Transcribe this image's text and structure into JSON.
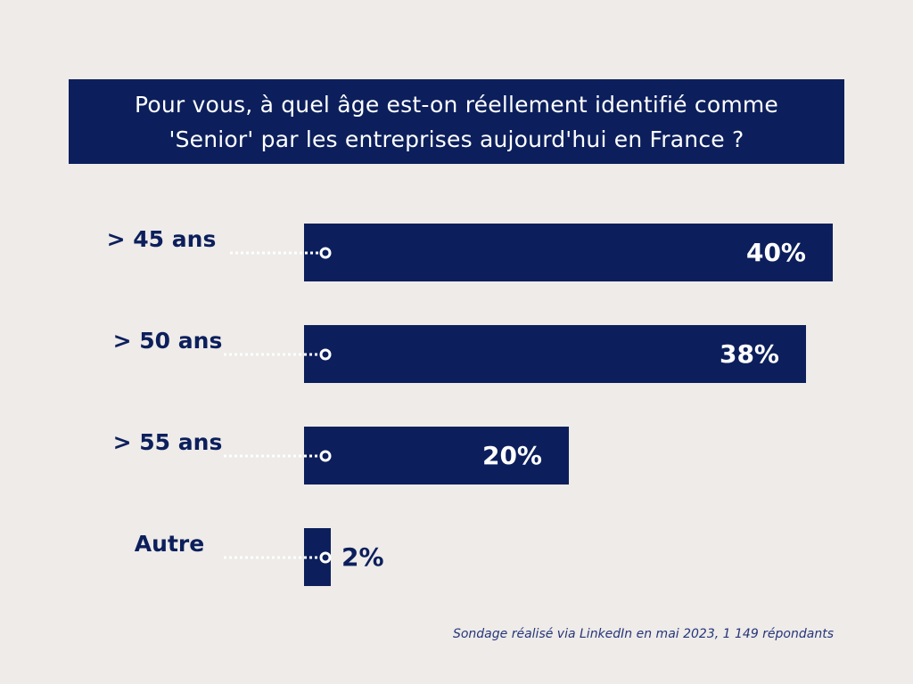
{
  "header": {
    "title_line1": "Pour vous, à quel âge est-on réellement identifié comme",
    "title_line2": "'Senior' par les entreprises aujourd'hui en France ?"
  },
  "colors": {
    "background": "#eeebe8",
    "bar": "#0c1f5c",
    "dot_connector": "#ffffff"
  },
  "chart_data": {
    "type": "bar",
    "orientation": "horizontal",
    "title": "Pour vous, à quel âge est-on réellement identifié comme 'Senior' par les entreprises aujourd'hui en France ?",
    "categories": [
      "> 45 ans",
      "> 50 ans",
      "> 55 ans",
      "Autre"
    ],
    "values": [
      40,
      38,
      20,
      2
    ],
    "value_labels": [
      "40%",
      "38%",
      "20%",
      "2%"
    ],
    "unit": "%",
    "xlim": [
      0,
      40
    ],
    "grid": false,
    "legend": "none"
  },
  "footer": {
    "note": "Sondage réalisé via LinkedIn en mai 2023, 1 149 répondants"
  }
}
